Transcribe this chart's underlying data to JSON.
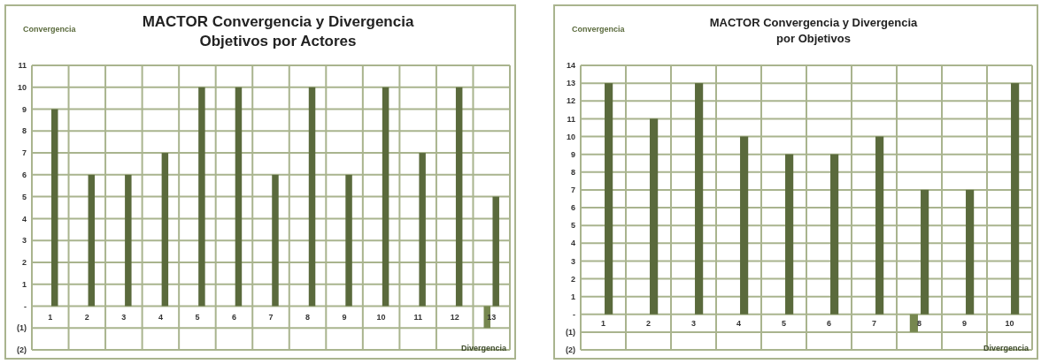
{
  "chart_data": [
    {
      "type": "bar",
      "title": "MACTOR Convergencia y Divergencia\nObjetivos por Actores",
      "ylabel": "Convergencia",
      "xlabel": "Divergencia",
      "categories": [
        "1",
        "2",
        "3",
        "4",
        "5",
        "6",
        "7",
        "8",
        "9",
        "10",
        "11",
        "12",
        "13"
      ],
      "series": [
        {
          "color": "#5a6a3c",
          "values": [
            9,
            6,
            6,
            7,
            10,
            10,
            6,
            10,
            6,
            10,
            7,
            10,
            5
          ]
        },
        {
          "color": "#76874f",
          "values": [
            null,
            null,
            null,
            null,
            null,
            null,
            null,
            null,
            null,
            null,
            null,
            null,
            -1
          ]
        }
      ],
      "ylim": [
        -2,
        11
      ],
      "yticks": [
        {
          "value": -2,
          "label": "(2)"
        },
        {
          "value": -1,
          "label": "(1)"
        },
        {
          "value": 0,
          "label": "-"
        },
        1,
        2,
        3,
        4,
        5,
        6,
        7,
        8,
        9,
        10,
        11
      ],
      "grid": true
    },
    {
      "type": "bar",
      "title": "MACTOR Convergencia y Divergencia\npor Objetivos",
      "ylabel": "Convergencia",
      "xlabel": "Divergencia",
      "categories": [
        "1",
        "2",
        "3",
        "4",
        "5",
        "6",
        "7",
        "8",
        "9",
        "10"
      ],
      "series": [
        {
          "color": "#5a6a3c",
          "values": [
            13,
            11,
            13,
            10,
            9,
            9,
            10,
            7,
            7,
            13
          ]
        },
        {
          "color": "#76874f",
          "values": [
            null,
            null,
            null,
            null,
            null,
            null,
            null,
            -1,
            null,
            null
          ]
        }
      ],
      "ylim": [
        -2,
        14
      ],
      "yticks": [
        {
          "value": -2,
          "label": "(2)"
        },
        {
          "value": -1,
          "label": "(1)"
        },
        {
          "value": 0,
          "label": "-"
        },
        1,
        2,
        3,
        4,
        5,
        6,
        7,
        8,
        9,
        10,
        11,
        12,
        13,
        14
      ],
      "grid": true
    }
  ]
}
